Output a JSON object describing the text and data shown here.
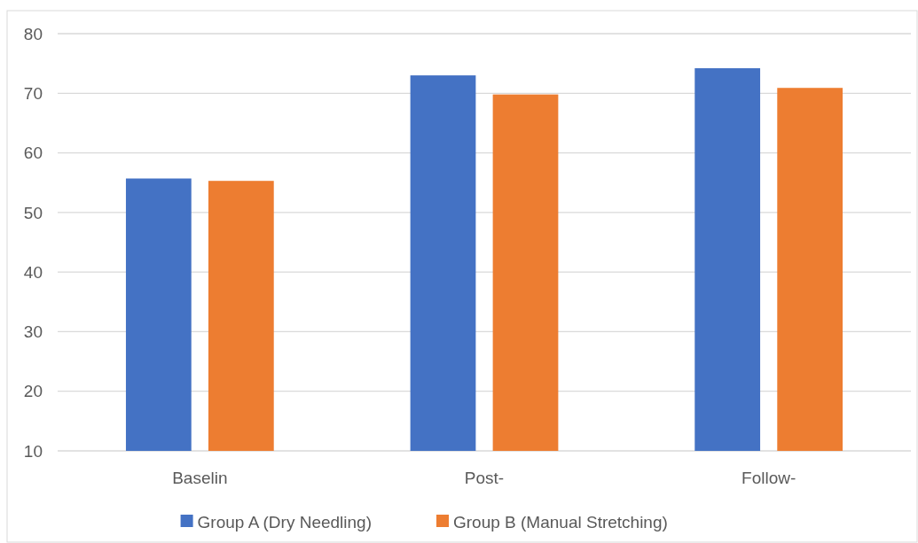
{
  "chart_data": {
    "type": "bar",
    "categories": [
      "Baselin",
      "Post-",
      "Follow-"
    ],
    "series": [
      {
        "name": "Group A (Dry Needling)",
        "color": "#4472c4",
        "values": [
          55.7,
          73.0,
          74.2
        ]
      },
      {
        "name": "Group B (Manual Stretching)",
        "color": "#ed7d31",
        "values": [
          55.3,
          69.8,
          70.9
        ]
      }
    ],
    "ylim": [
      10,
      80
    ],
    "yticks": [
      10,
      20,
      30,
      40,
      50,
      60,
      70,
      80
    ],
    "grid": "y",
    "legend": "bottom"
  }
}
